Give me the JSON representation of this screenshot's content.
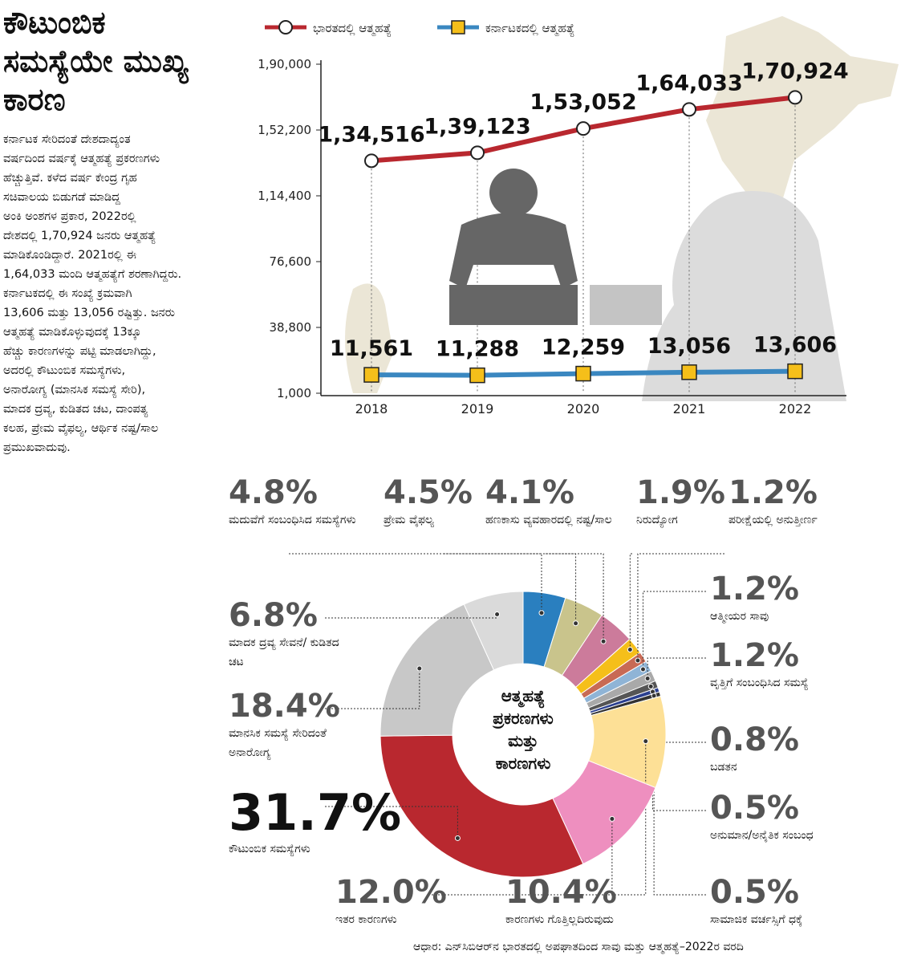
{
  "title": "ಕೌಟುಂಬಿಕ ಸಮಸ್ಯೆಯೇ ಮುಖ್ಯ ಕಾರಣ",
  "body": [
    "ಕರ್ನಾಟಕ ಸೇರಿದಂತೆ ದೇಶದಾದ್ಯಂತ",
    "ವರ್ಷದಿಂದ ವರ್ಷಕ್ಕೆ ಆತ್ಮಹತ್ಯೆ ಪ್ರಕರಣಗಳು",
    "ಹೆಚ್ಚುತ್ತಿವೆ. ಕಳೆದ ವರ್ಷ ಕೇಂದ್ರ ಗೃಹ",
    "ಸಚಿವಾಲಯ ಬಿಡುಗಡೆ ಮಾಡಿದ್ದ",
    "ಅಂಕಿ ಅಂಶಗಳ ಪ್ರಕಾರ, 2022ರಲ್ಲಿ",
    "ದೇಶದಲ್ಲಿ 1,70,924 ಜನರು ಆತ್ಮಹತ್ಯೆ",
    "ಮಾಡಿಕೊಂಡಿದ್ದಾರೆ. 2021ರಲ್ಲಿ ಈ",
    "1,64,033 ಮಂದಿ ಆತ್ಮಹತ್ಯೆಗೆ ಶರಣಾಗಿದ್ದರು.",
    "ಕರ್ನಾಟಕದಲ್ಲಿ ಈ ಸಂಖ್ಯೆ ಕ್ರಮವಾಗಿ",
    "13,606 ಮತ್ತು 13,056 ರಷ್ಟಿತ್ತು. ಜನರು",
    "ಆತ್ಮಹತ್ಯೆ ಮಾಡಿಕೊಳ್ಳುವುದಕ್ಕೆ 13ಕ್ಕೂ",
    "ಹೆಚ್ಚು ಕಾರಣಗಳನ್ನು ಪಟ್ಟಿ ಮಾಡಲಾಗಿದ್ದು,",
    "ಅದರಲ್ಲಿ ಕೌಟುಂಬಿಕ ಸಮಸ್ಯೆಗಳು,",
    "ಅನಾರೋಗ್ಯ (ಮಾನಸಿಕ ಸಮಸ್ಯೆ ಸೇರಿ),",
    "ಮಾದಕ ದ್ರವ್ಯ, ಕುಡಿತದ ಚಟ, ದಾಂಪತ್ಯ",
    "ಕಲಹ, ಪ್ರೇಮ ವೈಫಲ್ಯ, ಆರ್ಥಿಕ ನಷ್ಟ/ಸಾಲ",
    "ಪ್ರಮುಖವಾದುವು."
  ],
  "source": "ಆಧಾರ: ಎನ್‌ಸಿಬಿಆರ್‌ನ ಭಾರತದಲ್ಲಿ ಅಪಘಾತದಿಂದ ಸಾವು ಮತ್ತು ಆತ್ಮಹತ್ಯೆ–2022ರ ವರದಿ",
  "chart_data": [
    {
      "type": "line",
      "categories": [
        "2018",
        "2019",
        "2020",
        "2021",
        "2022"
      ],
      "series": [
        {
          "name": "ಭಾರತದಲ್ಲಿ ಆತ್ಮಹತ್ಯೆ",
          "color": "#b9282f",
          "values": [
            134516,
            139123,
            153052,
            164033,
            170924
          ],
          "value_labels": [
            "1,34,516",
            "1,39,123",
            "1,53,052",
            "1,64,033",
            "1,70,924"
          ]
        },
        {
          "name": "ಕರ್ನಾಟಕದಲ್ಲಿ ಆತ್ಮಹತ್ಯೆ",
          "color": "#3a87c0",
          "values": [
            11561,
            11288,
            12259,
            13056,
            13606
          ],
          "value_labels": [
            "11,561",
            "11,288",
            "12,259",
            "13,056",
            "13,606"
          ]
        }
      ],
      "ylim": [
        1000,
        190000
      ],
      "yticks": [
        {
          "value": 1000,
          "label": "1,000"
        },
        {
          "value": 38800,
          "label": "38,800"
        },
        {
          "value": 76600,
          "label": "76,600"
        },
        {
          "value": 114400,
          "label": "1,14,400"
        },
        {
          "value": 152200,
          "label": "1,52,200"
        },
        {
          "value": 190000,
          "label": "1,90,000"
        }
      ]
    },
    {
      "type": "donut",
      "center_text": [
        "ಆತ್ಮಹತ್ಯೆ",
        "ಪ್ರಕರಣಗಳು",
        "ಮತ್ತು",
        "ಕಾರಣಗಳು"
      ],
      "categories": [
        "ಮದುವೆಗೆ ಸಂಬಂಧಿಸಿದ ಸಮಸ್ಯೆಗಳು",
        "ಪ್ರೇಮ ವೈಫಲ್ಯ",
        "ಹಣಕಾಸು ವ್ಯವಹಾರದಲ್ಲಿ ನಷ್ಟ/ಸಾಲ",
        "ನಿರುದ್ಯೋಗ",
        "ಪರೀಕ್ಷೆಯಲ್ಲಿ ಅನುತ್ತೀರ್ಣ",
        "ಆತ್ಮೀಯರ ಸಾವು",
        "ವೃತ್ತಿಗೆ ಸಂಬಂಧಿಸಿದ ಸಮಸ್ಯೆ",
        "ಬಡತನ",
        "ಅನುಮಾನ/ಅನೈತಿಕ ಸಂಬಂಧ",
        "ಸಾಮಾಜಿಕ ವರ್ಚಸ್ಸಿಗೆ ಧಕ್ಕೆ",
        "ಕಾರಣಗಳು ಗೊತ್ತಿಲ್ಲದಿರುವುದು",
        "ಇತರ ಕಾರಣಗಳು",
        "ಕೌಟುಂಬಿಕ ಸಮಸ್ಯೆಗಳು",
        "ಮಾನಸಿಕ ಸಮಸ್ಯೆ ಸೇರಿದಂತೆ ಅನಾರೋಗ್ಯ",
        "ಮಾದಕ ದ್ರವ್ಯ ಸೇವನೆ/ ಕುಡಿತದ ಚಟ"
      ],
      "values": [
        4.8,
        4.5,
        4.1,
        1.9,
        1.2,
        1.2,
        1.2,
        0.8,
        0.5,
        0.5,
        10.4,
        12.0,
        31.7,
        18.4,
        6.8
      ],
      "value_labels": [
        "4.8%",
        "4.5%",
        "4.1%",
        "1.9%",
        "1.2%",
        "1.2%",
        "1.2%",
        "0.8%",
        "0.5%",
        "0.5%",
        "10.4%",
        "12.0%",
        "31.7%",
        "18.4%",
        "6.8%"
      ],
      "colors": [
        "#2a7fbf",
        "#c9c48c",
        "#cc7b9b",
        "#f5bf1a",
        "#c86a55",
        "#8fb4d6",
        "#a9a9a9",
        "#555555",
        "#2a3f8f",
        "#333333",
        "#fde096",
        "#ee8fbf",
        "#b9282f",
        "#c8c8c8",
        "#dadada"
      ]
    }
  ]
}
